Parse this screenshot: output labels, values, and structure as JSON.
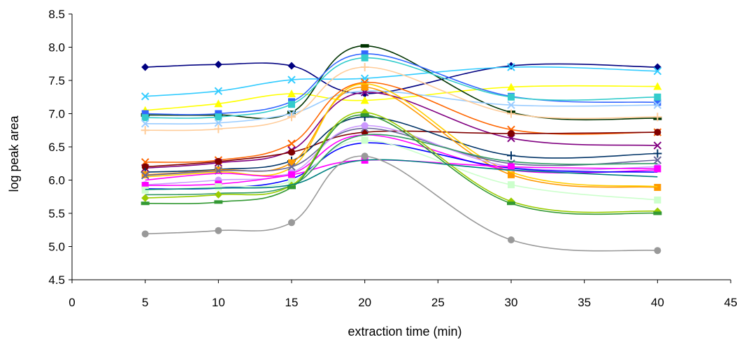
{
  "chart_data": {
    "type": "line",
    "xlabel": "extraction time (min)",
    "ylabel": "log peak area",
    "xlim": [
      0,
      45
    ],
    "ylim": [
      4.5,
      8.5
    ],
    "xticks": [
      0,
      5,
      10,
      15,
      20,
      25,
      30,
      35,
      40,
      45
    ],
    "xtick_labels": [
      "0",
      "5",
      "10",
      "15",
      "20",
      "25",
      "30",
      "35",
      "40",
      "45"
    ],
    "yticks": [
      4.5,
      5.0,
      5.5,
      6.0,
      6.5,
      7.0,
      7.5,
      8.0,
      8.5
    ],
    "ytick_labels": [
      "4.5",
      "5.0",
      "5.5",
      "6.0",
      "6.5",
      "7.0",
      "7.5",
      "8.0",
      "8.5"
    ],
    "grid": false,
    "legend": "none",
    "x": [
      5,
      10,
      15,
      20,
      30,
      40
    ],
    "series": [
      {
        "values": [
          7.7,
          7.74,
          7.72,
          7.3,
          7.72,
          7.7
        ],
        "color": "#000080",
        "marker": "diamond"
      },
      {
        "values": [
          7.26,
          7.34,
          7.51,
          7.53,
          7.7,
          7.64
        ],
        "color": "#33ccff",
        "marker": "x"
      },
      {
        "values": [
          7.05,
          7.15,
          7.3,
          7.2,
          7.4,
          7.41
        ],
        "color": "#ffff00",
        "marker": "triangle"
      },
      {
        "values": [
          6.98,
          6.98,
          7.02,
          8.02,
          7.02,
          6.93
        ],
        "color": "#003300",
        "marker": "dash"
      },
      {
        "values": [
          7.0,
          7.0,
          7.18,
          7.9,
          7.26,
          7.17
        ],
        "color": "#3366ff",
        "marker": "square"
      },
      {
        "values": [
          6.94,
          6.95,
          7.14,
          7.84,
          7.25,
          7.25
        ],
        "color": "#33cccc",
        "marker": "square"
      },
      {
        "values": [
          6.85,
          6.86,
          7.0,
          7.34,
          7.13,
          7.13
        ],
        "color": "#99ccff",
        "marker": "x"
      },
      {
        "values": [
          6.75,
          6.77,
          6.95,
          7.7,
          7.0,
          6.95
        ],
        "color": "#ffcc99",
        "marker": "plus"
      },
      {
        "values": [
          6.27,
          6.3,
          6.55,
          7.47,
          6.76,
          6.72
        ],
        "color": "#ff6600",
        "marker": "x"
      },
      {
        "values": [
          6.18,
          6.26,
          6.45,
          7.32,
          6.63,
          6.52
        ],
        "color": "#800080",
        "marker": "x"
      },
      {
        "values": [
          6.2,
          6.28,
          6.42,
          6.72,
          6.7,
          6.72
        ],
        "color": "#800000",
        "marker": "circle"
      },
      {
        "values": [
          6.12,
          6.16,
          6.29,
          6.95,
          6.37,
          6.4
        ],
        "color": "#003366",
        "marker": "plus"
      },
      {
        "values": [
          6.08,
          6.15,
          6.26,
          7.4,
          6.08,
          5.89
        ],
        "color": "#ff9900",
        "marker": "square"
      },
      {
        "values": [
          6.05,
          6.12,
          6.19,
          7.45,
          6.12,
          5.9
        ],
        "color": "#ffcc00",
        "marker": "none"
      },
      {
        "values": [
          6.07,
          6.14,
          6.2,
          6.78,
          6.25,
          6.3
        ],
        "color": "#666699",
        "marker": "x"
      },
      {
        "values": [
          6.0,
          6.1,
          6.1,
          6.68,
          6.15,
          6.15
        ],
        "color": "#ff00ff",
        "marker": "none"
      },
      {
        "values": [
          5.93,
          6.0,
          6.11,
          6.82,
          6.2,
          6.2
        ],
        "color": "#cc99ff",
        "marker": "circle"
      },
      {
        "values": [
          5.87,
          5.88,
          6.02,
          6.56,
          6.18,
          6.12
        ],
        "color": "#0000ff",
        "marker": "none"
      },
      {
        "values": [
          5.92,
          5.94,
          6.08,
          6.3,
          6.2,
          6.17
        ],
        "color": "#ff00ff",
        "marker": "square"
      },
      {
        "values": [
          5.85,
          5.9,
          5.98,
          6.6,
          5.93,
          5.7
        ],
        "color": "#ccffcc",
        "marker": "square"
      },
      {
        "values": [
          5.78,
          5.8,
          5.92,
          6.68,
          6.28,
          6.25
        ],
        "color": "#339966",
        "marker": "none"
      },
      {
        "values": [
          5.73,
          5.78,
          5.92,
          7.02,
          5.68,
          5.53
        ],
        "color": "#99cc00",
        "marker": "diamond"
      },
      {
        "values": [
          5.65,
          5.67,
          5.89,
          6.98,
          5.65,
          5.5
        ],
        "color": "#339933",
        "marker": "dash"
      },
      {
        "values": [
          5.86,
          5.88,
          5.93,
          6.3,
          6.15,
          6.05
        ],
        "color": "#008080",
        "marker": "none"
      },
      {
        "values": [
          5.19,
          5.24,
          5.36,
          6.36,
          5.1,
          4.94
        ],
        "color": "#999999",
        "marker": "circle"
      }
    ]
  }
}
